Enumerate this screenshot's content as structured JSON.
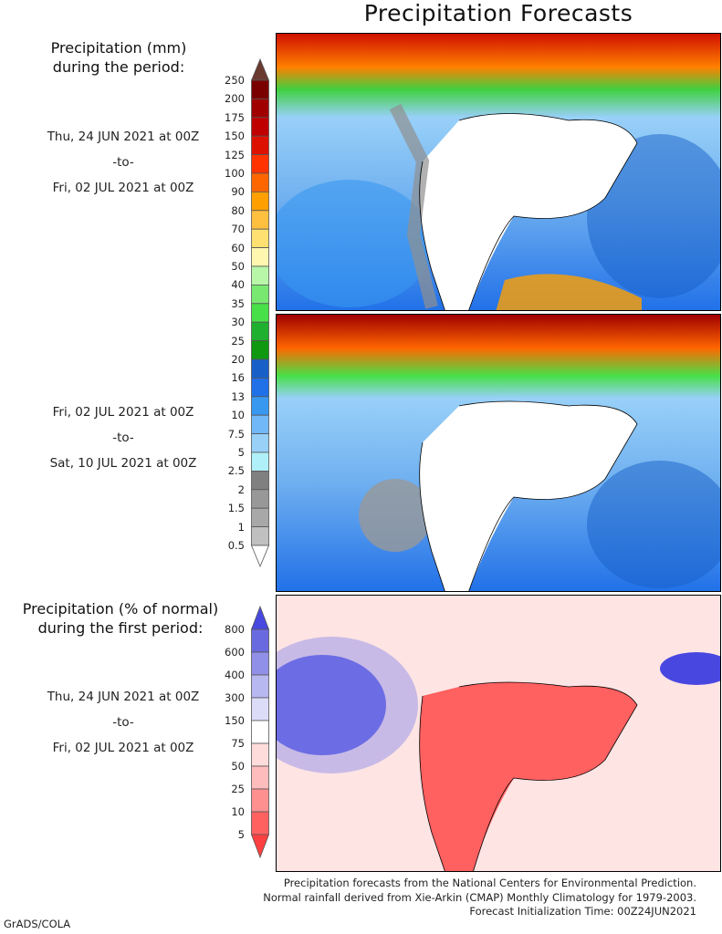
{
  "title": "Precipitation Forecasts",
  "mm_header": [
    "Precipitation (mm)",
    "during the period:"
  ],
  "period1": {
    "start": "Thu, 24 JUN 2021 at 00Z",
    "sep": "-to-",
    "end": "Fri, 02 JUL 2021 at 00Z"
  },
  "period2": {
    "start": "Fri, 02 JUL 2021 at 00Z",
    "sep": "-to-",
    "end": "Sat, 10 JUL 2021 at 00Z"
  },
  "pct_header": [
    "Precipitation (% of normal)",
    "during the first period:"
  ],
  "period3": {
    "start": "Thu, 24 JUN 2021 at 00Z",
    "sep": "-to-",
    "end": "Fri, 02 JUL 2021 at 00Z"
  },
  "mm_colorbar": {
    "labels": [
      "250",
      "200",
      "175",
      "150",
      "125",
      "100",
      "90",
      "80",
      "70",
      "60",
      "50",
      "40",
      "35",
      "30",
      "25",
      "20",
      "16",
      "13",
      "10",
      "7.5",
      "5",
      "2.5",
      "2",
      "1.5",
      "1",
      "0.5"
    ],
    "colors": [
      "#7a0000",
      "#a00000",
      "#c00000",
      "#dd1100",
      "#ff3300",
      "#ff6600",
      "#ffa000",
      "#ffc040",
      "#ffe070",
      "#fff6b0",
      "#b8f6a8",
      "#78e870",
      "#48e048",
      "#20b030",
      "#109810",
      "#1860c8",
      "#2070e8",
      "#3898f0",
      "#70b8f8",
      "#98d0f8",
      "#b0f0f8",
      "#808080",
      "#989898",
      "#a8a8a8",
      "#c0c0c0"
    ],
    "top_color": "#6a3a30",
    "bottom_color": "#ffffff"
  },
  "pct_colorbar": {
    "labels": [
      "800",
      "600",
      "400",
      "300",
      "150",
      "75",
      "50",
      "25",
      "10",
      "5"
    ],
    "colors": [
      "#6a6ae0",
      "#9090e8",
      "#b8b8f0",
      "#dcdcf8",
      "#ffffff",
      "#ffdcdc",
      "#ffbcbc",
      "#ff9090",
      "#ff6060"
    ],
    "top_color": "#4848e0",
    "bottom_color": "#ff4040"
  },
  "footer": [
    "Precipitation forecasts from the National Centers for Environmental Prediction.",
    "Normal rainfall derived from Xie-Arkin (CMAP) Monthly Climatology for 1979-2003.",
    "Forecast Initialization Time: 00Z24JUN2021"
  ],
  "credit": "GrADS/COLA"
}
